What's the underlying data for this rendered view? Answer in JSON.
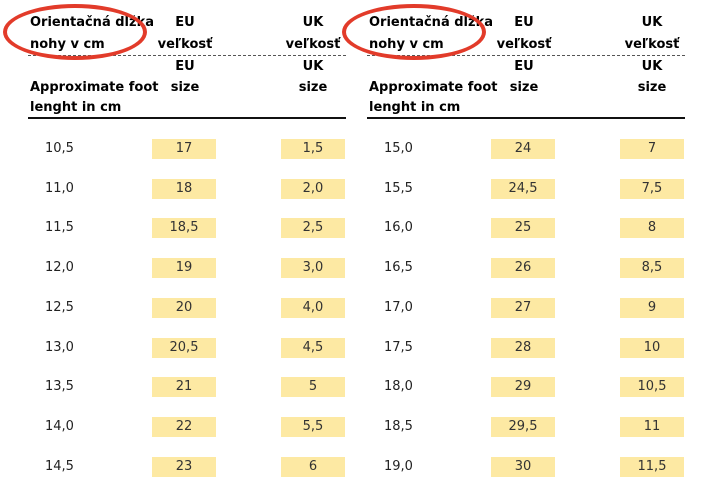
{
  "tables": [
    {
      "header": {
        "sk_cm_line1": "Orientačná dĺžka",
        "sk_cm_line2": "nohy v cm",
        "sk_eu_line1": "EU",
        "sk_eu_line2": "veľkosť",
        "sk_uk_line1": "UK",
        "sk_uk_line2": "veľkosť",
        "en_cm_line1": "Approximate foot",
        "en_cm_line2": "lenght in cm",
        "en_eu_line1": "EU",
        "en_eu_line2": "size",
        "en_uk_line1": "UK",
        "en_uk_line2": "size"
      },
      "rows": [
        {
          "cm": "10,5",
          "eu": "17",
          "uk": "1,5"
        },
        {
          "cm": "11,0",
          "eu": "18",
          "uk": "2,0"
        },
        {
          "cm": "11,5",
          "eu": "18,5",
          "uk": "2,5"
        },
        {
          "cm": "12,0",
          "eu": "19",
          "uk": "3,0"
        },
        {
          "cm": "12,5",
          "eu": "20",
          "uk": "4,0"
        },
        {
          "cm": "13,0",
          "eu": "20,5",
          "uk": "4,5"
        },
        {
          "cm": "13,5",
          "eu": "21",
          "uk": "5"
        },
        {
          "cm": "14,0",
          "eu": "22",
          "uk": "5,5"
        },
        {
          "cm": "14,5",
          "eu": "23",
          "uk": "6"
        }
      ]
    },
    {
      "header": {
        "sk_cm_line1": "Orientačná dĺžka",
        "sk_cm_line2": "nohy v cm",
        "sk_eu_line1": "EU",
        "sk_eu_line2": "veľkosť",
        "sk_uk_line1": "UK",
        "sk_uk_line2": "veľkosť",
        "en_cm_line1": "Approximate foot",
        "en_cm_line2": "lenght in cm",
        "en_eu_line1": "EU",
        "en_eu_line2": "size",
        "en_uk_line1": "UK",
        "en_uk_line2": "size"
      },
      "rows": [
        {
          "cm": "15,0",
          "eu": "24",
          "uk": "7"
        },
        {
          "cm": "15,5",
          "eu": "24,5",
          "uk": "7,5"
        },
        {
          "cm": "16,0",
          "eu": "25",
          "uk": "8"
        },
        {
          "cm": "16,5",
          "eu": "26",
          "uk": "8,5"
        },
        {
          "cm": "17,0",
          "eu": "27",
          "uk": "9"
        },
        {
          "cm": "17,5",
          "eu": "28",
          "uk": "10"
        },
        {
          "cm": "18,0",
          "eu": "29",
          "uk": "10,5"
        },
        {
          "cm": "18,5",
          "eu": "29,5",
          "uk": "11"
        },
        {
          "cm": "19,0",
          "eu": "30",
          "uk": "11,5"
        }
      ]
    }
  ],
  "colors": {
    "highlight": "#fde9a3",
    "annotation_oval": "#e23b2a"
  }
}
